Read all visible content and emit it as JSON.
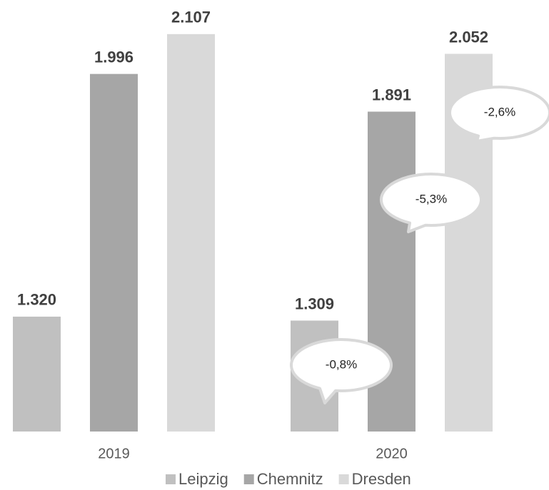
{
  "chart_data": {
    "type": "bar",
    "categories": [
      "2019",
      "2020"
    ],
    "series": [
      {
        "name": "Leipzig",
        "color": "#c0c0c0",
        "values": [
          1320,
          1309
        ],
        "value_labels": [
          "1.320",
          "1.309"
        ]
      },
      {
        "name": "Chemnitz",
        "color": "#a6a6a6",
        "values": [
          1996,
          1891
        ],
        "value_labels": [
          "1.996",
          "1.891"
        ]
      },
      {
        "name": "Dresden",
        "color": "#d9d9d9",
        "values": [
          2107,
          2052
        ],
        "value_labels": [
          "2.107",
          "2.052"
        ]
      }
    ],
    "ylim": [
      1000,
      2200
    ],
    "annotations": [
      "-0,8%",
      "-5,3%",
      "-2,6%"
    ],
    "legend": "bottom"
  }
}
